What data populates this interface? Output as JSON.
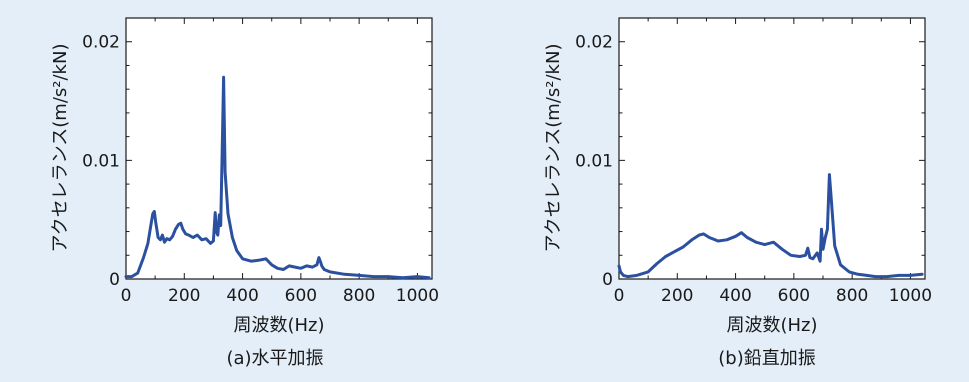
{
  "chart_data": [
    {
      "type": "line",
      "caption": "(a)水平加振",
      "xlabel": "周波数(Hz)",
      "ylabel": "アクセレランス(m/s²/kN)",
      "xlim": [
        0,
        1050
      ],
      "ylim": [
        0,
        0.022
      ],
      "xticks": [
        "0",
        "200",
        "400",
        "600",
        "800",
        "1000"
      ],
      "yticks": [
        "0",
        "0.01",
        "0.02"
      ],
      "grid": false,
      "color": "#2b50a0",
      "series": [
        {
          "x": [
            0,
            20,
            40,
            60,
            75,
            85,
            92,
            97,
            102,
            110,
            118,
            125,
            132,
            140,
            150,
            160,
            170,
            180,
            188,
            195,
            205,
            215,
            230,
            245,
            260,
            275,
            290,
            300,
            306,
            310,
            315,
            320,
            325,
            330,
            335,
            340,
            350,
            365,
            380,
            400,
            430,
            460,
            480,
            500,
            520,
            540,
            560,
            580,
            600,
            620,
            640,
            655,
            662,
            668,
            672,
            680,
            700,
            750,
            800,
            850,
            900,
            950,
            1000,
            1040
          ],
          "y": [
            0.0002,
            0.0002,
            0.0005,
            0.0018,
            0.003,
            0.0045,
            0.0055,
            0.0057,
            0.0048,
            0.0035,
            0.0033,
            0.0037,
            0.0031,
            0.0034,
            0.0033,
            0.0036,
            0.0042,
            0.0046,
            0.0047,
            0.0042,
            0.0038,
            0.0037,
            0.0035,
            0.0037,
            0.0033,
            0.0034,
            0.003,
            0.0032,
            0.0056,
            0.004,
            0.0037,
            0.0054,
            0.0045,
            0.0108,
            0.017,
            0.009,
            0.0055,
            0.0035,
            0.0024,
            0.0017,
            0.0015,
            0.0016,
            0.0017,
            0.0012,
            0.0009,
            0.0008,
            0.0011,
            0.001,
            0.0009,
            0.0011,
            0.001,
            0.0012,
            0.0018,
            0.0014,
            0.0011,
            0.0008,
            0.0006,
            0.0004,
            0.0003,
            0.0002,
            0.0002,
            0.0001,
            0.0002,
            0.0001
          ]
        }
      ]
    },
    {
      "type": "line",
      "caption": "(b)鉛直加振",
      "xlabel": "周波数(Hz)",
      "ylabel": "アクセレランス(m/s²/kN)",
      "xlim": [
        0,
        1050
      ],
      "ylim": [
        0,
        0.022
      ],
      "xticks": [
        "0",
        "200",
        "400",
        "600",
        "800",
        "1000"
      ],
      "yticks": [
        "0",
        "0.01",
        "0.02"
      ],
      "grid": false,
      "color": "#2b50a0",
      "series": [
        {
          "x": [
            0,
            5,
            15,
            30,
            60,
            100,
            130,
            160,
            190,
            220,
            250,
            275,
            290,
            310,
            340,
            370,
            400,
            420,
            440,
            470,
            500,
            530,
            560,
            590,
            620,
            640,
            648,
            655,
            665,
            680,
            690,
            695,
            700,
            708,
            715,
            722,
            728,
            740,
            760,
            790,
            820,
            850,
            880,
            920,
            960,
            1000,
            1040
          ],
          "y": [
            0.0011,
            0.0006,
            0.0003,
            0.0002,
            0.0003,
            0.0006,
            0.0013,
            0.0019,
            0.0023,
            0.0027,
            0.0033,
            0.0037,
            0.0038,
            0.0035,
            0.0032,
            0.0033,
            0.0036,
            0.0039,
            0.0035,
            0.0031,
            0.0029,
            0.0031,
            0.0025,
            0.002,
            0.0019,
            0.002,
            0.0026,
            0.0018,
            0.0017,
            0.0022,
            0.0015,
            0.0042,
            0.0025,
            0.0035,
            0.0042,
            0.0088,
            0.0068,
            0.0028,
            0.0012,
            0.0006,
            0.0004,
            0.0003,
            0.0002,
            0.0002,
            0.0003,
            0.0003,
            0.0004
          ]
        }
      ]
    }
  ]
}
